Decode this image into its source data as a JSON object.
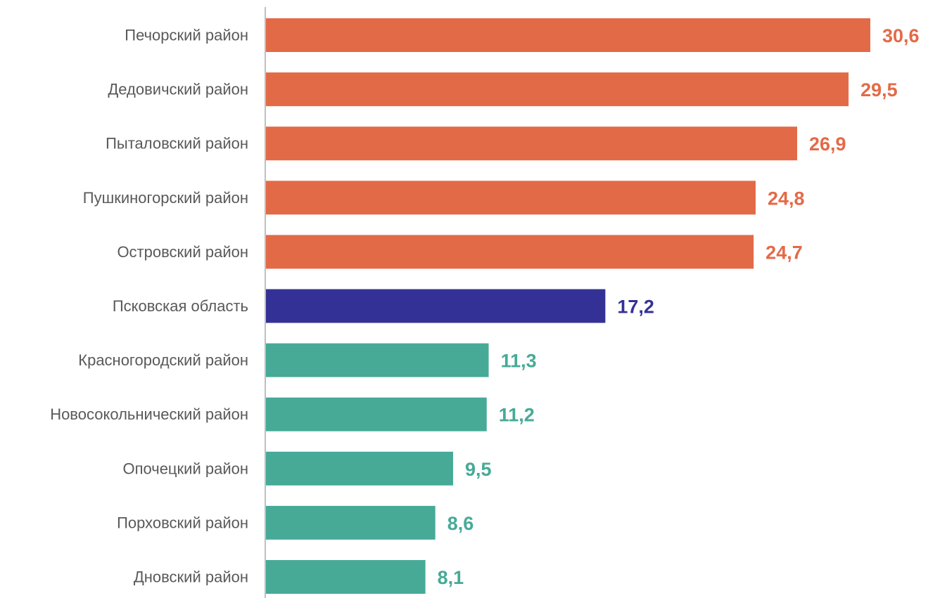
{
  "chart_data": {
    "type": "bar",
    "orientation": "horizontal",
    "categories": [
      "Печорский район",
      "Дедовичский район",
      "Пыталовский район",
      "Пушкиногорский район",
      "Островский район",
      "Псковская область",
      "Красногородский район",
      "Новосокольнический район",
      "Опочецкий район",
      "Порховский район",
      "Дновский район"
    ],
    "values": [
      30.6,
      29.5,
      26.9,
      24.8,
      24.7,
      17.2,
      11.3,
      11.2,
      9.5,
      8.6,
      8.1
    ],
    "value_labels": [
      "30,6",
      "29,5",
      "26,9",
      "24,8",
      "24,7",
      "17,2",
      "11,3",
      "11,2",
      "9,5",
      "8,6",
      "8,1"
    ],
    "groups": [
      "high",
      "high",
      "high",
      "high",
      "high",
      "region",
      "low",
      "low",
      "low",
      "low",
      "low"
    ],
    "colors": {
      "high": "#e36a47",
      "region": "#343196",
      "low": "#46aa97",
      "axis": "#bfbfbf",
      "category_text": "#595959"
    },
    "xlim": [
      0,
      30.6
    ],
    "grid": false,
    "legend": "none",
    "title": "",
    "xlabel": "",
    "ylabel": ""
  }
}
